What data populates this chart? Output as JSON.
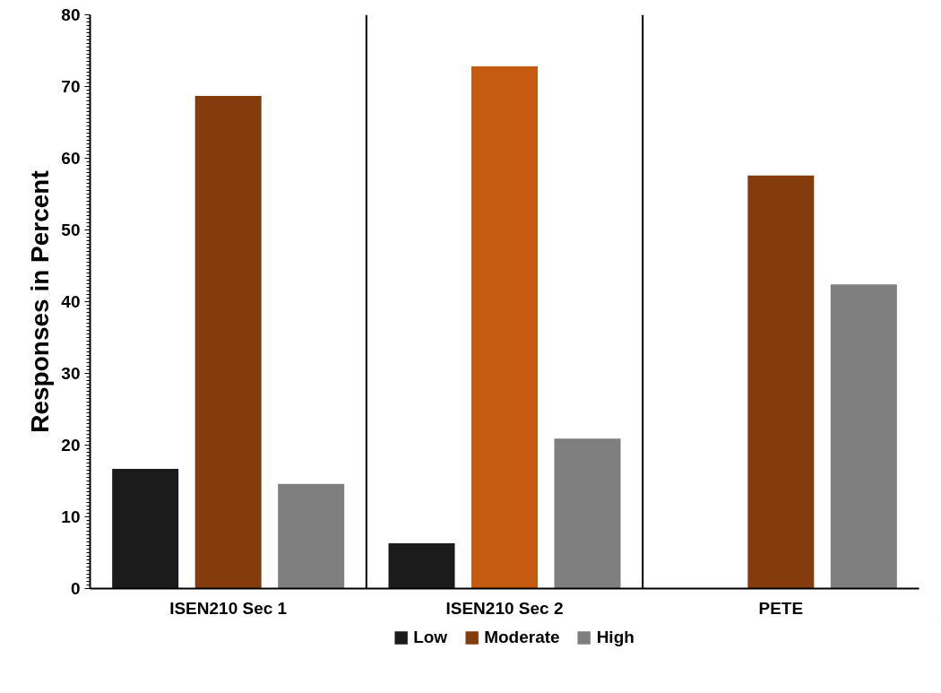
{
  "chart_data": {
    "type": "bar",
    "ylabel": "Responses in Percent",
    "categories": [
      "ISEN210 Sec 1",
      "ISEN210 Sec 2",
      "PETE"
    ],
    "series": [
      {
        "name": "Low",
        "color": "#1c1b1b",
        "values": [
          16.7,
          6.3,
          0
        ]
      },
      {
        "name": "Moderate",
        "color": "#843c0c",
        "colors": [
          "#843c0c",
          "#c55a11",
          "#843c0c"
        ],
        "values": [
          68.7,
          72.8,
          57.6
        ]
      },
      {
        "name": "High",
        "color": "#7f7f7f",
        "values": [
          14.6,
          20.9,
          42.4
        ]
      }
    ],
    "ylim": [
      0,
      80
    ],
    "yticks": [
      0,
      10,
      20,
      30,
      40,
      50,
      60,
      70,
      80
    ],
    "grid": false,
    "legend": "bottom"
  }
}
